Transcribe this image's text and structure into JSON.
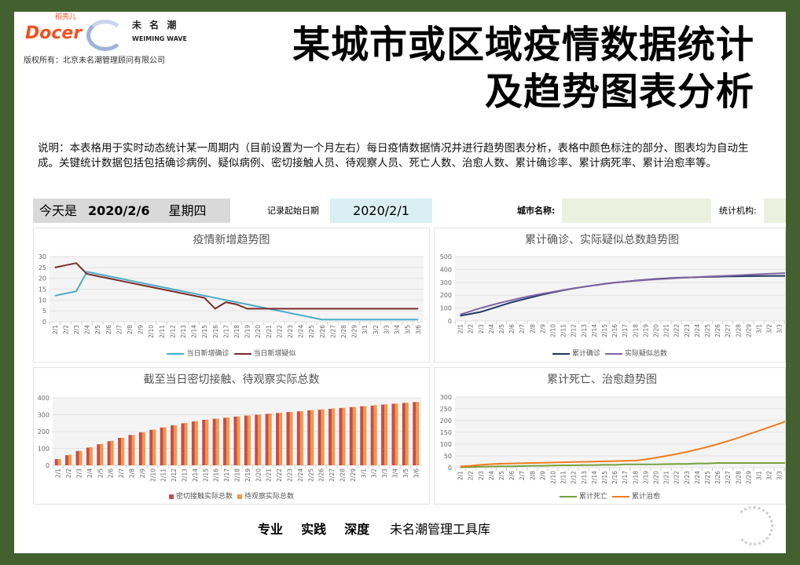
{
  "header": {
    "docer_cn": "稻壳儿",
    "docer": "Docer",
    "brand_cn": "未 名 潮",
    "brand_en": "WEIMING WAVE",
    "copyright": "版权所有：北京未名潮管理顾问有限公司",
    "title_line1": "某城市或区域疫情数据统计",
    "title_line2": "及趋势图表分析"
  },
  "description": "说明：本表格用于实时动态统计某一周期内（目前设置为一个月左右）每日疫情数据情况并进行趋势图表分析，表格中颜色标注的部分、图表均为自动生成。关键统计数据包括包括确诊病例、疑似病例、密切接触人员、待观察人员、死亡人数、治愈人数、累计确诊率、累计病死率、累计治愈率等。",
  "info": {
    "today_label": "今天是",
    "today_date": "2020/2/6",
    "weekday": "星期四",
    "start_label": "记录起始日期",
    "start_date": "2020/2/1",
    "city_label": "城市名称:",
    "city_value": "",
    "org_label": "统计机构:",
    "org_value": ""
  },
  "footer": {
    "slogan": "专业  实践  深度",
    "library": "未名潮管理工具库"
  },
  "chart_data": [
    {
      "type": "line",
      "title": "疫情新增趋势图",
      "ylim": [
        0,
        30
      ],
      "ystep": 5,
      "grid": true,
      "legend": "bottom",
      "categories": [
        "2/1",
        "2/2",
        "2/3",
        "2/4",
        "2/5",
        "2/6",
        "2/7",
        "2/8",
        "2/9",
        "2/10",
        "2/11",
        "2/12",
        "2/13",
        "2/14",
        "2/15",
        "2/16",
        "2/17",
        "2/18",
        "2/19",
        "2/20",
        "2/21",
        "2/22",
        "2/23",
        "2/24",
        "2/25",
        "2/26",
        "2/27",
        "2/28",
        "2/29",
        "3/1",
        "3/2",
        "3/3",
        "3/4",
        "3/5",
        "3/6"
      ],
      "series": [
        {
          "name": "当日新增确诊",
          "color": "#4bacc6",
          "values": [
            12,
            13,
            14,
            23,
            22,
            21,
            20,
            19,
            18,
            17,
            16,
            15,
            14,
            13,
            12,
            11,
            10,
            9,
            8,
            7,
            6,
            5,
            4,
            3,
            2,
            1,
            1,
            1,
            1,
            1,
            1,
            1,
            1,
            1,
            1
          ]
        },
        {
          "name": "当日新增疑似",
          "color": "#7b2c2c",
          "values": [
            25,
            26,
            27,
            22,
            21,
            20,
            19,
            18,
            17,
            16,
            15,
            14,
            13,
            12,
            11,
            6,
            9,
            8,
            6,
            6,
            6,
            6,
            6,
            6,
            6,
            6,
            6,
            6,
            6,
            6,
            6,
            6,
            6,
            6,
            6
          ]
        }
      ]
    },
    {
      "type": "line",
      "title": "累计确诊、实际疑似总数趋势图",
      "ylim": [
        0,
        500
      ],
      "ystep": 100,
      "grid": true,
      "legend": "bottom",
      "categories": [
        "2/1",
        "2/2",
        "2/3",
        "2/4",
        "2/5",
        "2/6",
        "2/7",
        "2/8",
        "2/9",
        "2/10",
        "2/11",
        "2/12",
        "2/13",
        "2/14",
        "2/15",
        "2/16",
        "2/17",
        "2/18",
        "2/19",
        "2/20",
        "2/21",
        "2/22",
        "2/23",
        "2/24",
        "2/25",
        "2/26",
        "2/27",
        "2/28",
        "2/29",
        "3/1",
        "3/2",
        "3/3",
        "3/4",
        "3/5",
        "3/6"
      ],
      "series": [
        {
          "name": "累计确诊",
          "color": "#1f3864",
          "values": [
            40,
            55,
            70,
            95,
            120,
            145,
            165,
            185,
            205,
            222,
            238,
            252,
            265,
            277,
            288,
            298,
            305,
            313,
            320,
            326,
            331,
            335,
            338,
            340,
            342,
            344,
            346,
            347,
            348,
            349,
            350,
            350,
            351,
            351,
            352
          ]
        },
        {
          "name": "实际疑似总数",
          "color": "#8064a2",
          "values": [
            50,
            75,
            100,
            122,
            143,
            162,
            180,
            197,
            212,
            226,
            240,
            253,
            265,
            276,
            287,
            297,
            305,
            312,
            318,
            323,
            328,
            333,
            337,
            341,
            345,
            348,
            351,
            355,
            359,
            363,
            367,
            370,
            373,
            376,
            379
          ]
        }
      ]
    },
    {
      "type": "bar",
      "title": "截至当日密切接触、待观察实际总数",
      "ylim": [
        0,
        400
      ],
      "ystep": 100,
      "grid": true,
      "legend": "bottom",
      "categories": [
        "2/1",
        "2/2",
        "2/3",
        "2/4",
        "2/5",
        "2/6",
        "2/7",
        "2/8",
        "2/9",
        "2/10",
        "2/11",
        "2/12",
        "2/13",
        "2/14",
        "2/15",
        "2/16",
        "2/17",
        "2/18",
        "2/19",
        "2/20",
        "2/21",
        "2/22",
        "2/23",
        "2/24",
        "2/25",
        "2/26",
        "2/27",
        "2/28",
        "2/29",
        "3/1",
        "3/2",
        "3/3",
        "3/4",
        "3/5",
        "3/6"
      ],
      "series": [
        {
          "name": "密切接触实际总数",
          "color": "#c0504d",
          "values": [
            37,
            60,
            85,
            105,
            125,
            143,
            163,
            180,
            196,
            210,
            224,
            237,
            249,
            260,
            270,
            276,
            282,
            289,
            295,
            300,
            305,
            310,
            316,
            320,
            326,
            330,
            335,
            340,
            345,
            350,
            354,
            360,
            365,
            370,
            375
          ]
        },
        {
          "name": "待观察实际总数",
          "color": "#f79646",
          "values": [
            37,
            63,
            85,
            107,
            127,
            146,
            163,
            180,
            196,
            212,
            226,
            237,
            251,
            262,
            271,
            277,
            284,
            290,
            296,
            301,
            307,
            312,
            316,
            321,
            327,
            332,
            338,
            341,
            346,
            351,
            357,
            362,
            366,
            371,
            376
          ]
        }
      ]
    },
    {
      "type": "line",
      "title": "累计死亡、治愈趋势图",
      "ylim": [
        0,
        300
      ],
      "ystep": 50,
      "grid": true,
      "legend": "bottom",
      "categories": [
        "2/1",
        "2/2",
        "2/3",
        "2/4",
        "2/5",
        "2/6",
        "2/7",
        "2/8",
        "2/9",
        "2/10",
        "2/11",
        "2/12",
        "2/13",
        "2/14",
        "2/15",
        "2/16",
        "2/17",
        "2/18",
        "2/19",
        "2/20",
        "2/21",
        "2/22",
        "2/23",
        "2/24",
        "2/25",
        "2/26",
        "2/27",
        "2/28",
        "2/29",
        "3/1",
        "3/2",
        "3/3",
        "3/4",
        "3/5",
        "3/6"
      ],
      "series": [
        {
          "name": "累计死亡",
          "color": "#77a03c",
          "values": [
            2,
            3,
            4,
            5,
            6,
            6,
            7,
            8,
            8,
            9,
            10,
            10,
            11,
            11,
            12,
            12,
            14,
            14,
            14,
            14,
            15,
            16,
            16,
            18,
            18,
            20,
            20,
            20,
            20,
            20,
            20,
            20,
            20,
            20,
            20
          ]
        },
        {
          "name": "累计治愈",
          "color": "#f07c1e",
          "values": [
            5,
            8,
            12,
            15,
            17,
            18,
            19,
            20,
            21,
            22,
            23,
            24,
            25,
            26,
            27,
            28,
            29,
            30,
            35,
            42,
            50,
            58,
            67,
            77,
            88,
            100,
            113,
            127,
            142,
            157,
            172,
            187,
            203,
            219,
            236
          ]
        }
      ]
    }
  ]
}
